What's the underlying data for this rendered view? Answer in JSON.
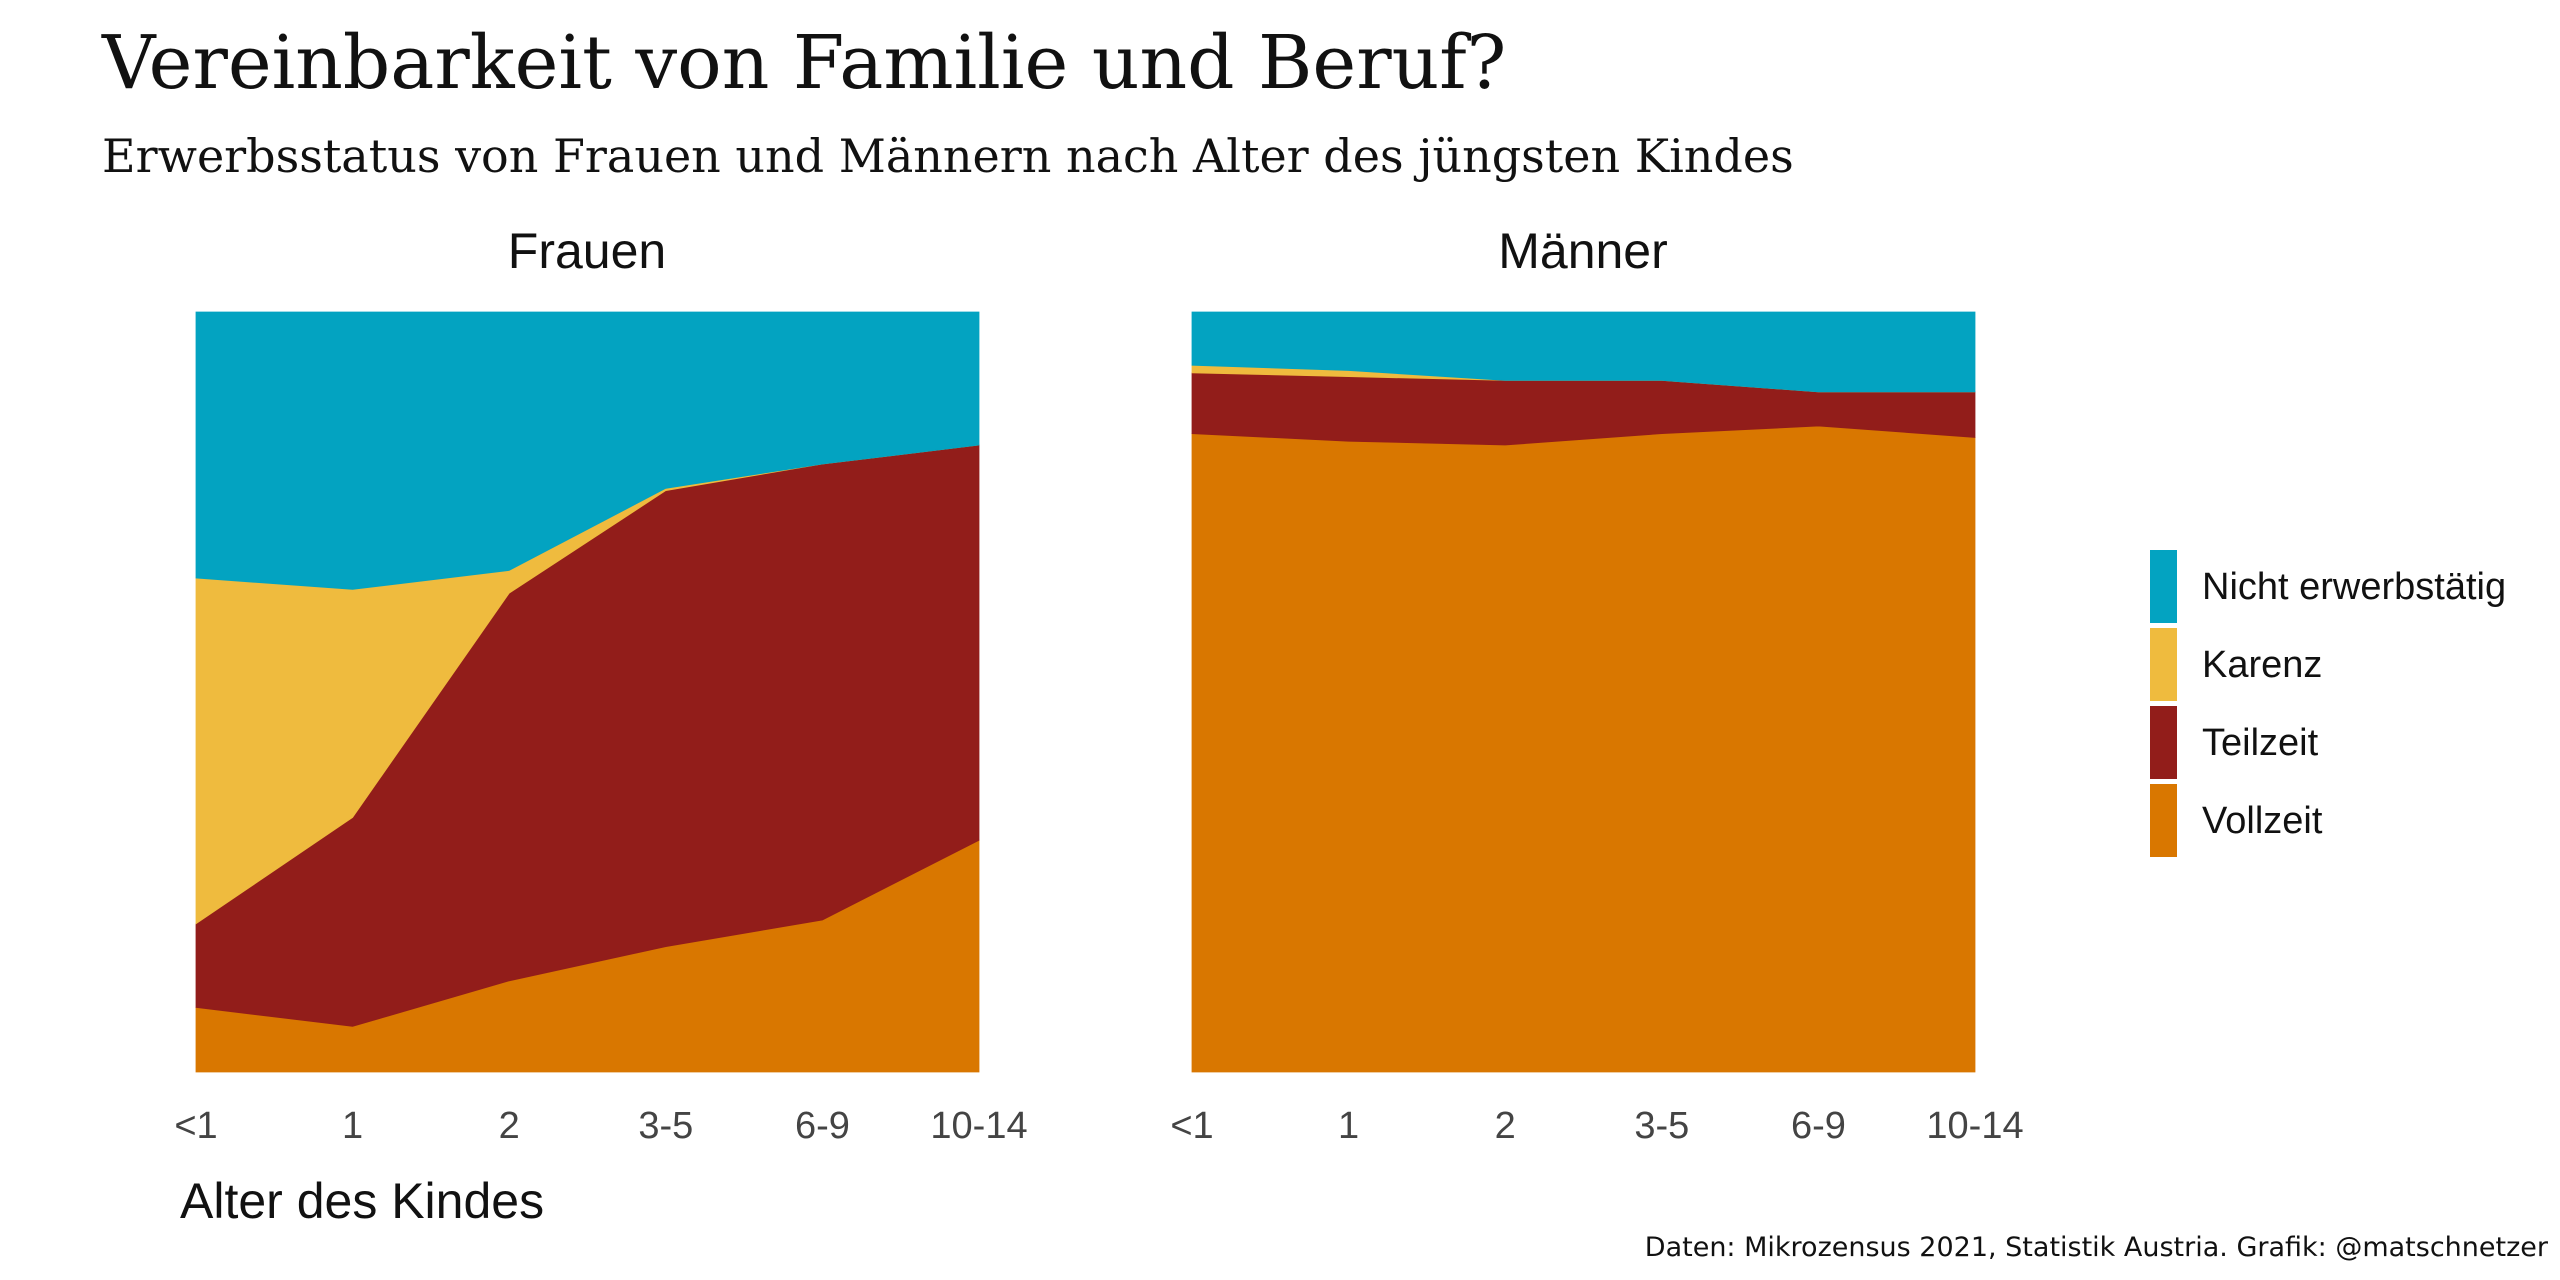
{
  "header": {
    "title": "Vereinbarkeit von Familie und Beruf?",
    "subtitle": "Erwerbsstatus von Frauen und Männern nach Alter des jüngsten Kindes"
  },
  "footer": {
    "source": "Daten: Mikrozensus 2021, Statistik Austria. Grafik: @matschnetzer"
  },
  "chart_data": [
    {
      "type": "area",
      "stacked": true,
      "title": "Frauen",
      "xlabel": "Alter des Kindes",
      "ylabel": "",
      "categories": [
        "<1",
        "1",
        "2",
        "3-5",
        "6-9",
        "10-14"
      ],
      "ylim": [
        0,
        100
      ],
      "grid": false,
      "legend": "right",
      "series": [
        {
          "name": "Vollzeit",
          "color": "#d97700",
          "values": [
            8.5,
            6,
            12,
            16.5,
            20,
            30.5
          ]
        },
        {
          "name": "Teilzeit",
          "color": "#921d1a",
          "values": [
            11,
            27.5,
            51,
            60,
            60,
            52
          ]
        },
        {
          "name": "Karenz",
          "color": "#efbb3e",
          "values": [
            45.5,
            30,
            3,
            0.3,
            0,
            0
          ]
        },
        {
          "name": "Nicht erwerbstätig",
          "color": "#03a3c1",
          "values": [
            35,
            36.5,
            34,
            23.2,
            20,
            17.5
          ]
        }
      ]
    },
    {
      "type": "area",
      "stacked": true,
      "title": "Männer",
      "xlabel": "",
      "ylabel": "",
      "categories": [
        "<1",
        "1",
        "2",
        "3-5",
        "6-9",
        "10-14"
      ],
      "ylim": [
        0,
        100
      ],
      "grid": false,
      "legend": "right",
      "series": [
        {
          "name": "Vollzeit",
          "color": "#d97700",
          "values": [
            84,
            83,
            82.5,
            84,
            85,
            83.5
          ]
        },
        {
          "name": "Teilzeit",
          "color": "#921d1a",
          "values": [
            8,
            8.5,
            8.5,
            7,
            4.5,
            6
          ]
        },
        {
          "name": "Karenz",
          "color": "#efbb3e",
          "values": [
            1,
            0.8,
            0,
            0,
            0,
            0
          ]
        },
        {
          "name": "Nicht erwerbstätig",
          "color": "#03a3c1",
          "values": [
            7,
            7.7,
            9,
            9,
            10.5,
            10.5
          ]
        }
      ]
    }
  ],
  "legend": {
    "items": [
      {
        "label": "Nicht erwerbstätig",
        "color": "#03a3c1"
      },
      {
        "label": "Karenz",
        "color": "#efbb3e"
      },
      {
        "label": "Teilzeit",
        "color": "#921d1a"
      },
      {
        "label": "Vollzeit",
        "color": "#d97700"
      }
    ]
  }
}
